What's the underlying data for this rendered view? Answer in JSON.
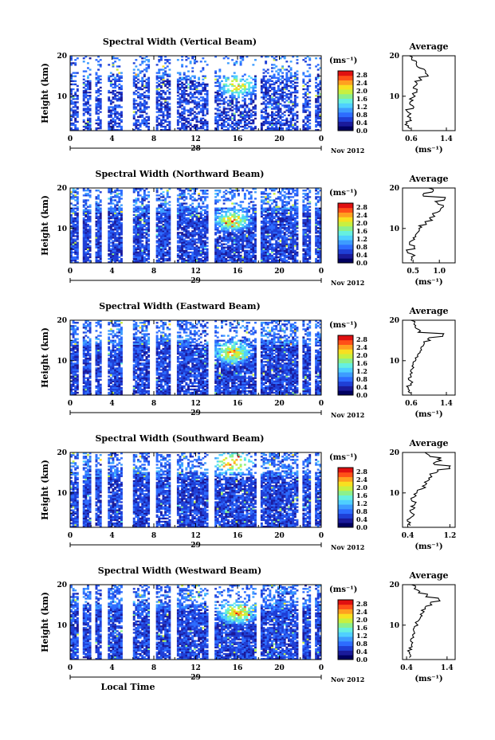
{
  "chart_data": [
    {
      "type": "heatmap",
      "title": "Spectral Width (Vertical Beam)",
      "ylabel": "Height (km)",
      "xticks": [
        "0",
        "4",
        "8",
        "12",
        "16",
        "20",
        "0"
      ],
      "xlim": [
        0,
        24
      ],
      "ylim": [
        1.5,
        20
      ],
      "yticks": [
        "20",
        "10"
      ],
      "date_label": "28",
      "month_label": "Nov 2012",
      "colorbar": {
        "unit": "(ms⁻¹)",
        "ticks": [
          "2.8",
          "2.4",
          "2.0",
          "1.6",
          "1.2",
          "0.8",
          "0.4",
          "0.0"
        ],
        "range": [
          0,
          3.0
        ]
      },
      "average": {
        "title": "Average",
        "xlabel": "(ms⁻¹)",
        "xticks": [
          "0.6",
          "1.4"
        ],
        "xlim": [
          0.4,
          1.6
        ],
        "yticks": [
          "20",
          "10"
        ],
        "heights": [
          2,
          3,
          4,
          5,
          6,
          7,
          8,
          9,
          10,
          11,
          12,
          13,
          14,
          15,
          16,
          17,
          18,
          19,
          20
        ],
        "values": [
          0.55,
          0.5,
          0.6,
          0.55,
          0.5,
          0.62,
          0.58,
          0.6,
          0.65,
          0.7,
          0.68,
          0.72,
          0.8,
          0.95,
          0.9,
          0.75,
          0.7,
          0.6,
          0.55
        ]
      },
      "hot_spot": {
        "time": 16,
        "height": 12.5
      }
    },
    {
      "type": "heatmap",
      "title": "Spectral Width (Northward Beam)",
      "ylabel": "Height (km)",
      "xticks": [
        "0",
        "4",
        "8",
        "12",
        "16",
        "20",
        "0"
      ],
      "xlim": [
        0,
        24
      ],
      "ylim": [
        1.5,
        20
      ],
      "yticks": [
        "20",
        "10"
      ],
      "date_label": "29",
      "month_label": "Nov 2012",
      "colorbar": {
        "unit": "(ms⁻¹)",
        "ticks": [
          "2.8",
          "2.4",
          "2.0",
          "1.6",
          "1.2",
          "0.8",
          "0.4",
          "0.0"
        ],
        "range": [
          0,
          3.0
        ]
      },
      "average": {
        "title": "Average",
        "xlabel": "(ms⁻¹)",
        "xticks": [
          "0.5",
          "1.0"
        ],
        "xlim": [
          0.3,
          1.3
        ],
        "yticks": [
          "20",
          "10"
        ],
        "heights": [
          2,
          3,
          4,
          5,
          6,
          7,
          8,
          9,
          10,
          11,
          12,
          13,
          14,
          15,
          16,
          17,
          18,
          19,
          20
        ],
        "values": [
          0.45,
          0.5,
          0.4,
          0.55,
          0.45,
          0.5,
          0.55,
          0.6,
          0.65,
          0.75,
          0.85,
          0.9,
          1.0,
          1.05,
          0.95,
          1.1,
          0.7,
          0.9,
          0.8
        ]
      },
      "hot_spot": {
        "time": 15.5,
        "height": 12
      }
    },
    {
      "type": "heatmap",
      "title": "Spectral Width (Eastward Beam)",
      "ylabel": "Height (km)",
      "xticks": [
        "0",
        "4",
        "8",
        "12",
        "16",
        "20",
        "0"
      ],
      "xlim": [
        0,
        24
      ],
      "ylim": [
        1.5,
        20
      ],
      "yticks": [
        "20",
        "10"
      ],
      "date_label": "29",
      "month_label": "Nov 2012",
      "colorbar": {
        "unit": "(ms⁻¹)",
        "ticks": [
          "2.8",
          "2.4",
          "2.0",
          "1.6",
          "1.2",
          "0.8",
          "0.4",
          "0.0"
        ],
        "range": [
          0,
          3.0
        ]
      },
      "average": {
        "title": "Average",
        "xlabel": "(ms⁻¹)",
        "xticks": [
          "0.6",
          "1.4"
        ],
        "xlim": [
          0.4,
          1.6
        ],
        "yticks": [
          "20",
          "10"
        ],
        "heights": [
          2,
          3,
          4,
          5,
          6,
          7,
          8,
          9,
          10,
          11,
          12,
          13,
          14,
          15,
          16,
          17,
          18,
          19,
          20
        ],
        "values": [
          0.55,
          0.5,
          0.6,
          0.55,
          0.58,
          0.6,
          0.62,
          0.65,
          0.7,
          0.75,
          0.8,
          0.85,
          0.9,
          1.0,
          1.3,
          0.8,
          0.7,
          0.65,
          0.6
        ]
      },
      "hot_spot": {
        "time": 15.5,
        "height": 12
      }
    },
    {
      "type": "heatmap",
      "title": "Spectral Width (Southward Beam)",
      "ylabel": "Height (km)",
      "xticks": [
        "0",
        "4",
        "8",
        "12",
        "16",
        "20",
        "0"
      ],
      "xlim": [
        0,
        24
      ],
      "ylim": [
        1.5,
        20
      ],
      "yticks": [
        "20",
        "10"
      ],
      "date_label": "29",
      "month_label": "Nov 2012",
      "colorbar": {
        "unit": "(ms⁻¹)",
        "ticks": [
          "2.8",
          "2.4",
          "2.0",
          "1.6",
          "1.2",
          "0.8",
          "0.4",
          "0.0"
        ],
        "range": [
          0,
          3.0
        ]
      },
      "average": {
        "title": "Average",
        "xlabel": "(ms⁻¹)",
        "xticks": [
          "0.4",
          "1.2"
        ],
        "xlim": [
          0.3,
          1.3
        ],
        "yticks": [
          "20",
          "10"
        ],
        "heights": [
          2,
          3,
          4,
          5,
          6,
          7,
          8,
          9,
          10,
          11,
          12,
          13,
          14,
          15,
          16,
          17,
          18,
          19,
          20
        ],
        "values": [
          0.45,
          0.4,
          0.5,
          0.45,
          0.5,
          0.55,
          0.5,
          0.55,
          0.6,
          0.7,
          0.75,
          0.8,
          0.85,
          0.95,
          1.2,
          0.9,
          1.0,
          0.8,
          0.7
        ]
      },
      "hot_spot": {
        "time": 15.5,
        "height": 17.5
      }
    },
    {
      "type": "heatmap",
      "title": "Spectral Width (Westward Beam)",
      "ylabel": "Height (km)",
      "xticks": [
        "0",
        "4",
        "8",
        "12",
        "16",
        "20",
        "0"
      ],
      "xlim": [
        0,
        24
      ],
      "ylim": [
        1.5,
        20
      ],
      "yticks": [
        "20",
        "10"
      ],
      "date_label": "29",
      "month_label": "Nov 2012",
      "xlabel": "Local Time",
      "colorbar": {
        "unit": "(ms⁻¹)",
        "ticks": [
          "2.8",
          "2.4",
          "2.0",
          "1.6",
          "1.2",
          "0.8",
          "0.4",
          "0.0"
        ],
        "range": [
          0,
          3.0
        ]
      },
      "average": {
        "title": "Average",
        "xlabel": "(ms⁻¹)",
        "xticks": [
          "0.4",
          "1.4"
        ],
        "xlim": [
          0.3,
          1.6
        ],
        "yticks": [
          "20",
          "10"
        ],
        "heights": [
          2,
          3,
          4,
          5,
          6,
          7,
          8,
          9,
          10,
          11,
          12,
          13,
          14,
          15,
          16,
          17,
          18,
          19,
          20
        ],
        "values": [
          0.5,
          0.45,
          0.5,
          0.55,
          0.5,
          0.55,
          0.6,
          0.6,
          0.65,
          0.7,
          0.75,
          0.8,
          0.85,
          1.0,
          1.2,
          0.9,
          0.7,
          0.6,
          0.55
        ]
      },
      "hot_spot": {
        "time": 16,
        "height": 13
      }
    }
  ],
  "colors": {
    "colorscale": [
      "#000060",
      "#1a1a9a",
      "#1f3fd6",
      "#2d6cff",
      "#3d9cff",
      "#4fd0ff",
      "#66f0e0",
      "#8cf08c",
      "#c8f040",
      "#f8e020",
      "#ffa020",
      "#ff5018",
      "#e01010"
    ],
    "no_data": "#ffffff",
    "axis": "#000000"
  },
  "gap_columns_hours": [
    1.0,
    2.2,
    3.3,
    5.3,
    5.8,
    7.9,
    9.9,
    13.5,
    18.0,
    22.0,
    23.2
  ],
  "panels": [
    {
      "title": "Spectral Width (Vertical Beam)"
    },
    {
      "title": "Spectral Width (Northward Beam)"
    },
    {
      "title": "Spectral Width (Eastward Beam)"
    },
    {
      "title": "Spectral Width (Southward Beam)"
    },
    {
      "title": "Spectral Width (Westward Beam)"
    }
  ]
}
